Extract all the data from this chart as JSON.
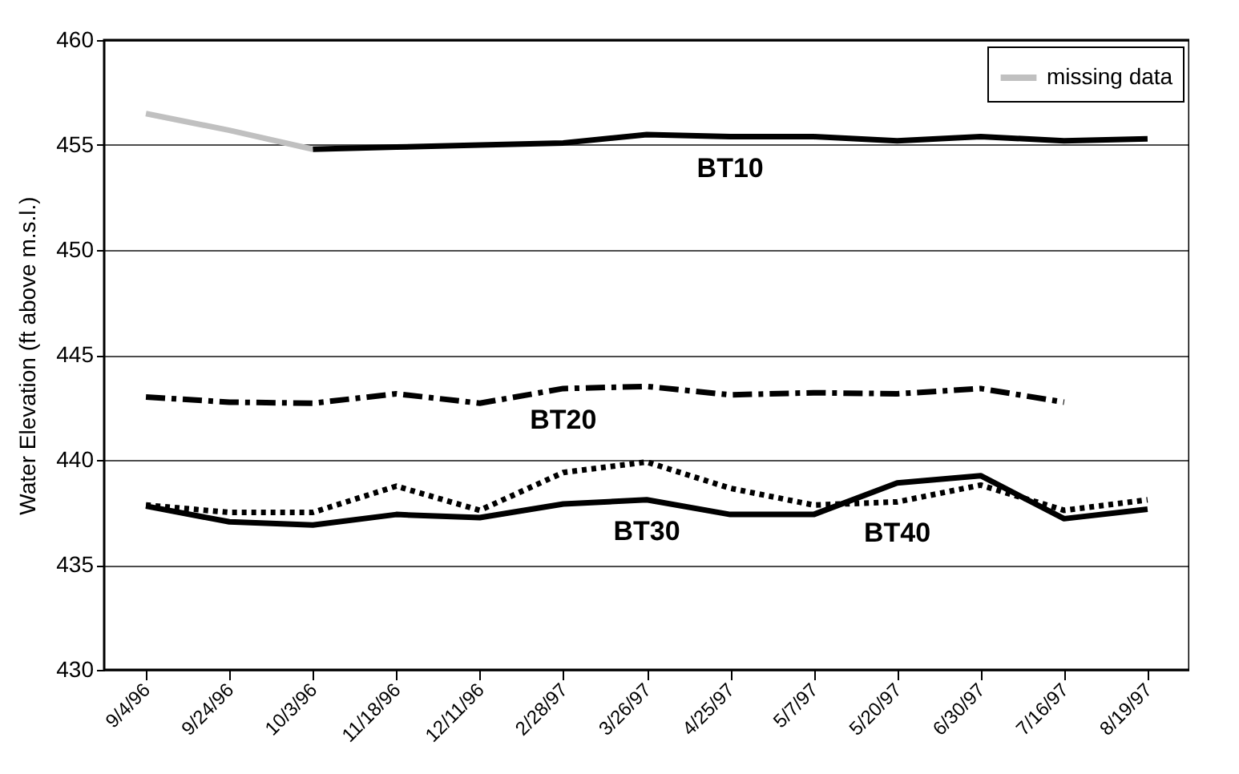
{
  "chart_data": {
    "type": "line",
    "ylabel": "Water Elevation (ft above m.s.l.)",
    "categories": [
      "9/4/96",
      "9/24/96",
      "10/3/96",
      "11/18/96",
      "12/11/96",
      "2/28/97",
      "3/26/97",
      "4/25/97",
      "5/7/97",
      "5/20/97",
      "6/30/97",
      "7/16/97",
      "8/19/97"
    ],
    "ylim": [
      430,
      460
    ],
    "yticks": [
      430,
      435,
      440,
      445,
      450,
      455,
      460
    ],
    "grid": "y",
    "legend": "top right",
    "series": [
      {
        "name": "missing data",
        "color": "#c0c0c0",
        "line_style": "solid",
        "values": [
          456.5,
          455.7,
          454.8,
          null,
          null,
          null,
          null,
          null,
          null,
          null,
          null,
          null,
          null
        ]
      },
      {
        "name": "BT10",
        "color": "#000000",
        "line_style": "solid",
        "values": [
          null,
          null,
          454.8,
          454.9,
          455.0,
          455.1,
          455.5,
          455.4,
          455.4,
          455.2,
          455.4,
          455.2,
          455.3
        ]
      },
      {
        "name": "BT20",
        "color": "#000000",
        "line_style": "dashed",
        "values": [
          443.0,
          442.75,
          442.7,
          443.15,
          442.7,
          443.4,
          443.5,
          443.1,
          443.2,
          443.15,
          443.4,
          442.75,
          null
        ]
      },
      {
        "name": "BT30",
        "color": "#000000",
        "line_style": "solid",
        "values": [
          437.8,
          437.05,
          436.9,
          437.4,
          437.25,
          437.9,
          438.1,
          437.4,
          437.4,
          438.9,
          439.25,
          437.2,
          437.65
        ]
      },
      {
        "name": "BT40",
        "color": "#000000",
        "line_style": "dotted",
        "values": [
          437.85,
          437.5,
          437.5,
          438.75,
          437.6,
          439.4,
          439.9,
          438.65,
          437.85,
          438.0,
          438.8,
          437.6,
          438.1
        ]
      }
    ]
  }
}
